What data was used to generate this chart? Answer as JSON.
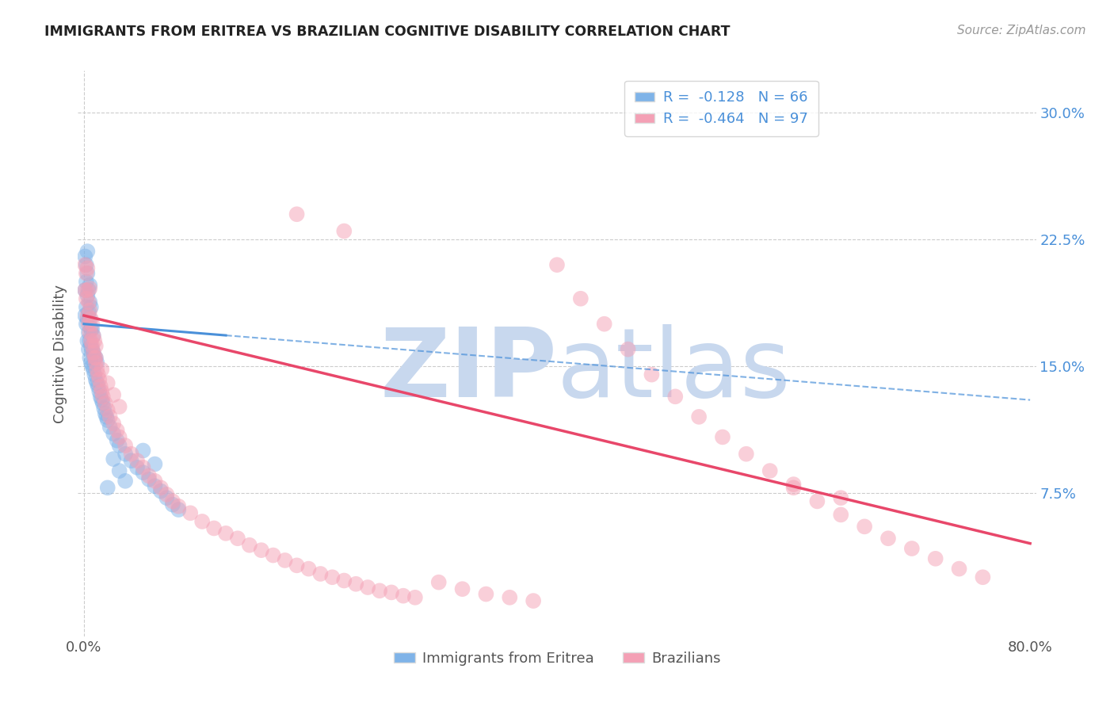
{
  "title": "IMMIGRANTS FROM ERITREA VS BRAZILIAN COGNITIVE DISABILITY CORRELATION CHART",
  "source_text": "Source: ZipAtlas.com",
  "ylabel": "Cognitive Disability",
  "legend_label1": "Immigrants from Eritrea",
  "legend_label2": "Brazilians",
  "r1": -0.128,
  "n1": 66,
  "r2": -0.464,
  "n2": 97,
  "xlim": [
    -0.005,
    0.805
  ],
  "ylim": [
    -0.01,
    0.325
  ],
  "y_ticks_right": [
    0.075,
    0.15,
    0.225,
    0.3
  ],
  "y_tick_labels_right": [
    "7.5%",
    "15.0%",
    "22.5%",
    "30.0%"
  ],
  "color1": "#7fb3e8",
  "color2": "#f4a0b5",
  "line_color1": "#4a90d9",
  "line_color2": "#e8476a",
  "background_color": "#ffffff",
  "grid_color": "#cccccc",
  "title_color": "#222222",
  "watermark_color": "#d0dff0",
  "watermark_zip": "ZIP",
  "watermark_atlas": "atlas",
  "scatter1_x": [
    0.001,
    0.001,
    0.001,
    0.002,
    0.002,
    0.002,
    0.002,
    0.003,
    0.003,
    0.003,
    0.003,
    0.003,
    0.004,
    0.004,
    0.004,
    0.004,
    0.005,
    0.005,
    0.005,
    0.005,
    0.005,
    0.006,
    0.006,
    0.006,
    0.006,
    0.007,
    0.007,
    0.007,
    0.008,
    0.008,
    0.008,
    0.009,
    0.009,
    0.01,
    0.01,
    0.011,
    0.011,
    0.012,
    0.013,
    0.014,
    0.015,
    0.016,
    0.017,
    0.018,
    0.019,
    0.02,
    0.022,
    0.025,
    0.028,
    0.03,
    0.035,
    0.04,
    0.045,
    0.05,
    0.055,
    0.06,
    0.065,
    0.07,
    0.075,
    0.08,
    0.02,
    0.025,
    0.03,
    0.035,
    0.05,
    0.06
  ],
  "scatter1_y": [
    0.18,
    0.195,
    0.215,
    0.175,
    0.185,
    0.2,
    0.21,
    0.165,
    0.178,
    0.192,
    0.205,
    0.218,
    0.16,
    0.17,
    0.182,
    0.195,
    0.155,
    0.165,
    0.178,
    0.188,
    0.198,
    0.152,
    0.162,
    0.172,
    0.185,
    0.15,
    0.16,
    0.172,
    0.148,
    0.158,
    0.168,
    0.145,
    0.155,
    0.142,
    0.155,
    0.14,
    0.152,
    0.138,
    0.135,
    0.132,
    0.13,
    0.128,
    0.125,
    0.122,
    0.12,
    0.118,
    0.114,
    0.11,
    0.106,
    0.103,
    0.098,
    0.094,
    0.09,
    0.087,
    0.083,
    0.079,
    0.076,
    0.072,
    0.068,
    0.065,
    0.078,
    0.095,
    0.088,
    0.082,
    0.1,
    0.092
  ],
  "scatter2_x": [
    0.001,
    0.001,
    0.002,
    0.002,
    0.003,
    0.003,
    0.003,
    0.004,
    0.004,
    0.005,
    0.005,
    0.005,
    0.006,
    0.006,
    0.007,
    0.007,
    0.008,
    0.008,
    0.009,
    0.009,
    0.01,
    0.01,
    0.011,
    0.012,
    0.013,
    0.014,
    0.015,
    0.016,
    0.018,
    0.02,
    0.022,
    0.025,
    0.028,
    0.03,
    0.035,
    0.04,
    0.045,
    0.05,
    0.055,
    0.06,
    0.065,
    0.07,
    0.075,
    0.08,
    0.09,
    0.1,
    0.11,
    0.12,
    0.13,
    0.14,
    0.15,
    0.16,
    0.17,
    0.18,
    0.19,
    0.2,
    0.21,
    0.22,
    0.23,
    0.24,
    0.25,
    0.26,
    0.27,
    0.28,
    0.3,
    0.32,
    0.34,
    0.36,
    0.38,
    0.4,
    0.42,
    0.44,
    0.46,
    0.48,
    0.5,
    0.52,
    0.54,
    0.56,
    0.58,
    0.6,
    0.62,
    0.64,
    0.66,
    0.68,
    0.7,
    0.72,
    0.74,
    0.76,
    0.01,
    0.015,
    0.02,
    0.025,
    0.03,
    0.22,
    0.18,
    0.6,
    0.64
  ],
  "scatter2_y": [
    0.195,
    0.21,
    0.19,
    0.205,
    0.18,
    0.195,
    0.208,
    0.175,
    0.188,
    0.17,
    0.183,
    0.196,
    0.165,
    0.178,
    0.162,
    0.175,
    0.158,
    0.168,
    0.155,
    0.165,
    0.152,
    0.162,
    0.148,
    0.145,
    0.142,
    0.138,
    0.135,
    0.132,
    0.128,
    0.124,
    0.12,
    0.116,
    0.112,
    0.108,
    0.103,
    0.098,
    0.094,
    0.09,
    0.085,
    0.082,
    0.078,
    0.074,
    0.07,
    0.067,
    0.063,
    0.058,
    0.054,
    0.051,
    0.048,
    0.044,
    0.041,
    0.038,
    0.035,
    0.032,
    0.03,
    0.027,
    0.025,
    0.023,
    0.021,
    0.019,
    0.017,
    0.016,
    0.014,
    0.013,
    0.022,
    0.018,
    0.015,
    0.013,
    0.011,
    0.21,
    0.19,
    0.175,
    0.16,
    0.145,
    0.132,
    0.12,
    0.108,
    0.098,
    0.088,
    0.078,
    0.07,
    0.062,
    0.055,
    0.048,
    0.042,
    0.036,
    0.03,
    0.025,
    0.155,
    0.148,
    0.14,
    0.133,
    0.126,
    0.23,
    0.24,
    0.08,
    0.072
  ],
  "line1_x0": 0.0,
  "line1_y0": 0.175,
  "line1_x1": 0.8,
  "line1_y1": 0.13,
  "line2_x0": 0.0,
  "line2_y0": 0.18,
  "line2_x1": 0.8,
  "line2_y1": 0.045
}
